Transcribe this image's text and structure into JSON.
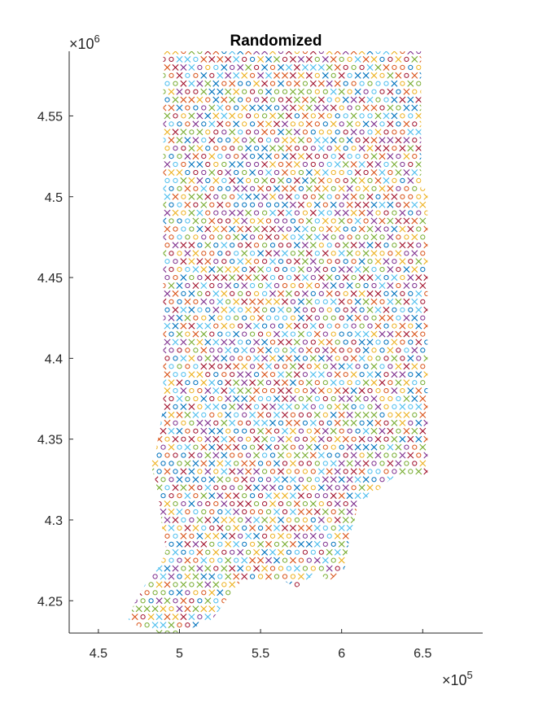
{
  "chart_data": {
    "type": "scatter",
    "title": "Randomized",
    "xlabel": "",
    "ylabel": "",
    "x_multiplier": {
      "base": "×10",
      "exp": "5"
    },
    "y_multiplier": {
      "base": "×10",
      "exp": "6"
    },
    "xlim": [
      4.32,
      6.87
    ],
    "ylim": [
      4.23,
      4.59
    ],
    "x_ticks": [
      4.5,
      5,
      5.5,
      6,
      6.5
    ],
    "x_tick_labels": [
      "4.5",
      "5",
      "5.5",
      "6",
      "6.5"
    ],
    "y_ticks": [
      4.25,
      4.3,
      4.35,
      4.4,
      4.45,
      4.5,
      4.55
    ],
    "y_tick_labels": [
      "4.25",
      "4.3",
      "4.35",
      "4.4",
      "4.45",
      "4.5",
      "4.55"
    ],
    "grid": false,
    "legend": "none",
    "marker_styles": [
      "x",
      "o"
    ],
    "grid_spacing_x": 0.05,
    "grid_spacing_y": 0.005,
    "region_outline": [
      [
        4.9,
        4.59
      ],
      [
        6.49,
        4.59
      ],
      [
        6.49,
        4.505
      ],
      [
        6.53,
        4.505
      ],
      [
        6.53,
        4.325
      ],
      [
        6.3,
        4.325
      ],
      [
        6.22,
        4.318
      ],
      [
        6.1,
        4.31
      ],
      [
        6.08,
        4.3
      ],
      [
        6.05,
        4.29
      ],
      [
        6.02,
        4.27
      ],
      [
        5.92,
        4.262
      ],
      [
        5.85,
        4.268
      ],
      [
        5.78,
        4.262
      ],
      [
        5.72,
        4.258
      ],
      [
        5.65,
        4.262
      ],
      [
        5.48,
        4.262
      ],
      [
        5.38,
        4.262
      ],
      [
        5.3,
        4.252
      ],
      [
        5.2,
        4.238
      ],
      [
        5.05,
        4.232
      ],
      [
        4.9,
        4.228
      ],
      [
        4.8,
        4.232
      ],
      [
        4.68,
        4.237
      ],
      [
        4.72,
        4.248
      ],
      [
        4.8,
        4.262
      ],
      [
        4.88,
        4.272
      ],
      [
        4.92,
        4.282
      ],
      [
        4.9,
        4.29
      ],
      [
        4.87,
        4.315
      ],
      [
        4.85,
        4.325
      ],
      [
        4.82,
        4.335
      ],
      [
        4.85,
        4.34
      ],
      [
        4.88,
        4.358
      ],
      [
        4.9,
        4.37
      ],
      [
        4.9,
        4.59
      ]
    ],
    "series_colors": [
      "#0072BD",
      "#D95319",
      "#EDB120",
      "#7E2F8E",
      "#77AC30",
      "#4DBEEE",
      "#A2142F"
    ]
  }
}
